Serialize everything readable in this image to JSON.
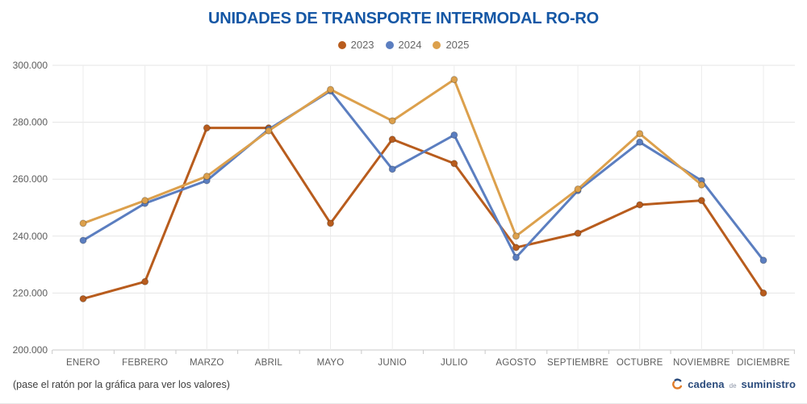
{
  "title": "UNIDADES DE TRANSPORTE INTERMODAL RO-RO",
  "footer": {
    "hint": "(pase el ratón por la gráfica para ver los valores)",
    "brand": {
      "part1": "cadena",
      "part2": "de",
      "part3": "suministro"
    }
  },
  "colors": {
    "title_blue": "#1557a5",
    "series_2023": "#b85c1d",
    "series_2024": "#5b7ec0",
    "series_2025": "#dca04c",
    "gridline": "#e5e5e5",
    "axis_baseline": "#c9c9c9",
    "axis_label": "#5c5c5c",
    "brand_navy": "#2a4b7c",
    "brand_orange": "#e07b28"
  },
  "chart_data": {
    "type": "line",
    "title": "UNIDADES DE TRANSPORTE INTERMODAL RO-RO",
    "categories": [
      "ENERO",
      "FEBRERO",
      "MARZO",
      "ABRIL",
      "MAYO",
      "JUNIO",
      "JULIO",
      "AGOSTO",
      "SEPTIEMBRE",
      "OCTUBRE",
      "NOVIEMBRE",
      "DICIEMBRE"
    ],
    "series": [
      {
        "name": "2023",
        "color": "#b85c1d",
        "values": [
          218000,
          224000,
          278000,
          278000,
          244500,
          274000,
          265500,
          236000,
          241000,
          251000,
          252500,
          220000
        ]
      },
      {
        "name": "2024",
        "color": "#5b7ec0",
        "values": [
          238500,
          251500,
          259500,
          277500,
          291000,
          263500,
          275500,
          232500,
          256000,
          273000,
          259500,
          231500
        ]
      },
      {
        "name": "2025",
        "color": "#dca04c",
        "values": [
          244500,
          252500,
          261000,
          277000,
          291500,
          280500,
          295000,
          240000,
          256500,
          276000,
          258000,
          null
        ]
      }
    ],
    "xlabel": "",
    "ylabel": "",
    "ylim": [
      200000,
      300000
    ],
    "ytick_values": [
      300000,
      280000,
      260000,
      240000,
      220000,
      200000
    ],
    "ytick_labels": [
      "300.000",
      "280.000",
      "260.000",
      "240.000",
      "220.000",
      "200.000"
    ],
    "grid": true,
    "legend_position": "top",
    "hover_tooltip": true
  }
}
